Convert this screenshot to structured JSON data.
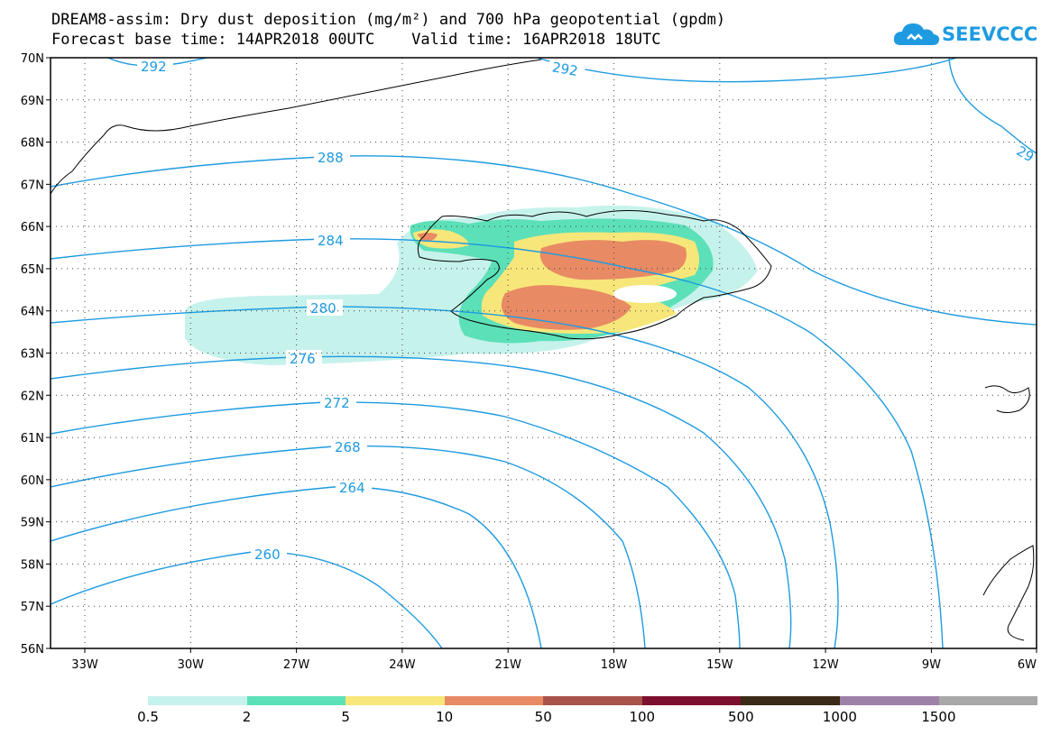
{
  "title": {
    "line1": "DREAM8-assim: Dry dust deposition (mg/m²) and 700 hPa geopotential (gpdm)",
    "line2": "Forecast base time: 14APR2018 00UTC    Valid time: 16APR2018 18UTC"
  },
  "logo": {
    "text": "SEEVCCC",
    "icon": "cloud-icon",
    "color": "#1e9be0"
  },
  "axes": {
    "lat_labels": [
      "70N",
      "69N",
      "68N",
      "67N",
      "66N",
      "65N",
      "64N",
      "63N",
      "62N",
      "61N",
      "60N",
      "59N",
      "58N",
      "57N",
      "56N"
    ],
    "lon_labels": [
      "33W",
      "30W",
      "27W",
      "24W",
      "21W",
      "18W",
      "15W",
      "12W",
      "9W",
      "6W"
    ]
  },
  "contours": {
    "color": "#1e9be0",
    "labels": [
      "292",
      "292",
      "29",
      "288",
      "284",
      "280",
      "276",
      "272",
      "268",
      "264",
      "260"
    ]
  },
  "legend": {
    "colors": [
      "#c6f2ec",
      "#5ce0b8",
      "#f7e77a",
      "#e88a64",
      "#a8524a",
      "#7d0f2e",
      "#3a2a16",
      "#9e82a8",
      "#a8a8a8"
    ],
    "labels": [
      "0.5",
      "2",
      "5",
      "10",
      "50",
      "100",
      "500",
      "1000",
      "1500"
    ]
  }
}
